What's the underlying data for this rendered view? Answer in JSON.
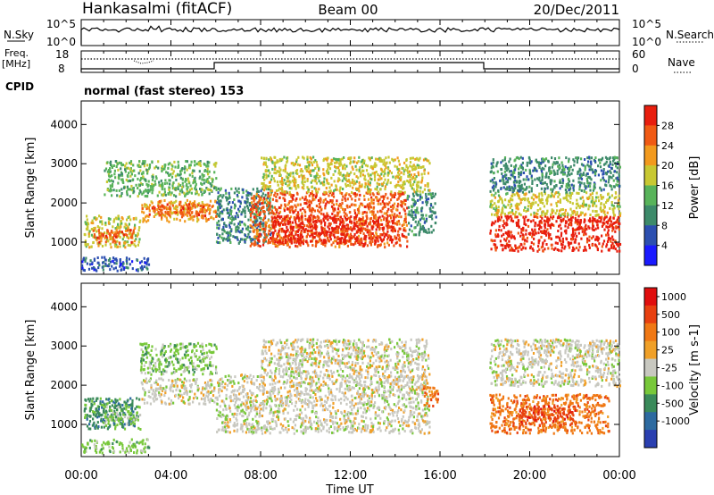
{
  "header": {
    "station": "Hankasalmi (fitACF)",
    "beam": "Beam 00",
    "date": "20/Dec/2011"
  },
  "status_panels": {
    "nsky_label": "N.Sky",
    "nsky_ticks": [
      "10^5",
      "10^0"
    ],
    "nsearch_label": "N.Search",
    "nsearch_ticks": [
      "10^5",
      "10^0"
    ],
    "freq_label_line1": "Freq.",
    "freq_label_line2": "[MHz]",
    "freq_ticks": [
      "18",
      "8"
    ],
    "nave_label": "Nave",
    "nave_ticks": [
      "60",
      "0"
    ],
    "cpid_label": "CPID",
    "cpid_mode": "normal (fast stereo) 153"
  },
  "chart_data": [
    {
      "type": "heatmap",
      "name": "power-panel",
      "ylabel": "Slant Range [km]",
      "yticks": [
        "4000",
        "3000",
        "2000",
        "1000"
      ],
      "ylim": [
        180,
        4600
      ],
      "xlim": [
        0,
        24
      ],
      "colorbar_label": "Power [dB]",
      "colorbar_ticks": [
        "28",
        "24",
        "20",
        "16",
        "12",
        "8",
        "4"
      ],
      "colors": [
        "#1a1aff",
        "#2c4fb0",
        "#3d8a6a",
        "#58b35a",
        "#c8c832",
        "#f29a1e",
        "#f05a14",
        "#e81e0e"
      ],
      "regions": [
        {
          "t": [
            0.1,
            2.6
          ],
          "r": [
            900,
            1700
          ],
          "level": 4
        },
        {
          "t": [
            0.5,
            2.3
          ],
          "r": [
            1000,
            1350
          ],
          "level": 6
        },
        {
          "t": [
            2.6,
            6.0
          ],
          "r": [
            1550,
            2100
          ],
          "level": 5
        },
        {
          "t": [
            3.0,
            5.8
          ],
          "r": [
            1700,
            2000
          ],
          "level": 6
        },
        {
          "t": [
            1.0,
            6.0
          ],
          "r": [
            2200,
            3100
          ],
          "level": 3
        },
        {
          "t": [
            6.0,
            8.5
          ],
          "r": [
            1000,
            2400
          ],
          "level": 2
        },
        {
          "t": [
            7.5,
            14.5
          ],
          "r": [
            900,
            2300
          ],
          "level": 6
        },
        {
          "t": [
            8.5,
            14.0
          ],
          "r": [
            1000,
            1700
          ],
          "level": 7
        },
        {
          "t": [
            8.0,
            15.5
          ],
          "r": [
            2300,
            3200
          ],
          "level": 4
        },
        {
          "t": [
            14.5,
            15.8
          ],
          "r": [
            1200,
            2300
          ],
          "level": 2
        },
        {
          "t": [
            18.2,
            24
          ],
          "r": [
            800,
            1700
          ],
          "level": 7
        },
        {
          "t": [
            18.2,
            24
          ],
          "r": [
            1700,
            2300
          ],
          "level": 4
        },
        {
          "t": [
            18.2,
            24
          ],
          "r": [
            2300,
            3200
          ],
          "level": 2
        },
        {
          "t": [
            0.0,
            3.0
          ],
          "r": [
            300,
            650
          ],
          "level": 1
        }
      ]
    },
    {
      "type": "heatmap",
      "name": "velocity-panel",
      "xlabel": "Time UT",
      "xticks": [
        "00:00",
        "04:00",
        "08:00",
        "12:00",
        "16:00",
        "20:00",
        "00:00"
      ],
      "ylabel": "Slant Range [km]",
      "yticks": [
        "4000",
        "3000",
        "2000",
        "1000"
      ],
      "ylim": [
        180,
        4600
      ],
      "xlim": [
        0,
        24
      ],
      "colorbar_label": "Velocity [m s-1]",
      "colorbar_ticks": [
        "1000",
        "500",
        "100",
        "25",
        "-25",
        "-100",
        "-500",
        "-1000"
      ],
      "colors": [
        "#2a3fb0",
        "#2d6aa0",
        "#3a8a5a",
        "#78c83a",
        "#c8c8c0",
        "#f0a028",
        "#f07814",
        "#e84010",
        "#e00e0e"
      ],
      "regions": [
        {
          "t": [
            0.1,
            2.6
          ],
          "r": [
            900,
            1700
          ],
          "level": 2
        },
        {
          "t": [
            1.0,
            2.6
          ],
          "r": [
            1000,
            1500
          ],
          "level": 3
        },
        {
          "t": [
            2.6,
            6.0
          ],
          "r": [
            1550,
            2200
          ],
          "level": 4
        },
        {
          "t": [
            2.6,
            6.0
          ],
          "r": [
            2300,
            3100
          ],
          "level": 3
        },
        {
          "t": [
            6.0,
            15.5
          ],
          "r": [
            800,
            2300
          ],
          "level": 4
        },
        {
          "t": [
            8.0,
            15.5
          ],
          "r": [
            2300,
            3200
          ],
          "level": 4
        },
        {
          "t": [
            15.2,
            15.9
          ],
          "r": [
            1500,
            2000
          ],
          "level": 6
        },
        {
          "t": [
            18.2,
            23.5
          ],
          "r": [
            800,
            1800
          ],
          "level": 6
        },
        {
          "t": [
            19.5,
            22.0
          ],
          "r": [
            1000,
            1500
          ],
          "level": 7
        },
        {
          "t": [
            18.2,
            24
          ],
          "r": [
            2000,
            3200
          ],
          "level": 4
        },
        {
          "t": [
            0.0,
            3.0
          ],
          "r": [
            300,
            650
          ],
          "level": 3
        }
      ]
    }
  ]
}
